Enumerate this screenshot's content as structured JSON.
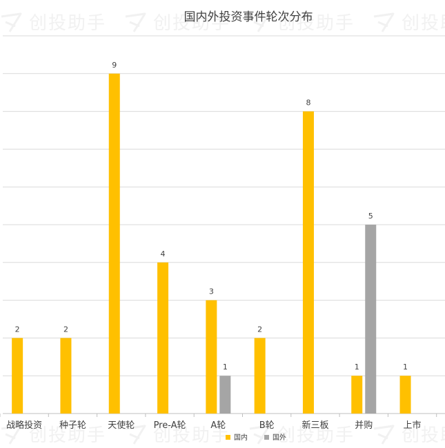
{
  "chart_data": {
    "type": "bar",
    "title": "国内外投资事件轮次分布",
    "categories": [
      "战略投资",
      "种子轮",
      "天使轮",
      "Pre-A轮",
      "A轮",
      "B轮",
      "新三板",
      "并购",
      "上市"
    ],
    "series": [
      {
        "name": "国内",
        "values": [
          2,
          2,
          9,
          4,
          3,
          2,
          8,
          1,
          1
        ]
      },
      {
        "name": "国外",
        "values": [
          0,
          0,
          0,
          0,
          1,
          0,
          0,
          5,
          0
        ]
      }
    ],
    "ylim": [
      0,
      10
    ],
    "grid": true,
    "legend": "bottom",
    "colors": {
      "domestic": "#FFC000",
      "foreign": "#A5A5A5",
      "grid": "#d9d9d9",
      "axis": "#bfbfbf",
      "text": "#404040"
    }
  },
  "watermark": {
    "text": "创投助手"
  }
}
